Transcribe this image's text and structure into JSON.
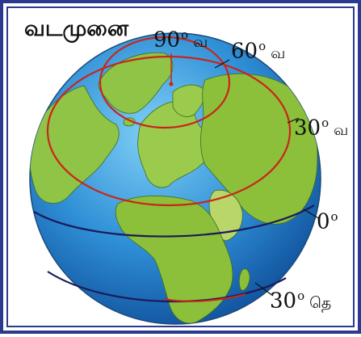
{
  "title": "வடமுனை",
  "colors": {
    "border": "#2a3b8f",
    "ocean": "#2f8fd6",
    "land": "#8cbf3a",
    "latitude_line": "#c8261b",
    "equator_line": "#1b1b5a"
  },
  "labels": [
    {
      "value": "90",
      "degree": "o",
      "direction": "வ"
    },
    {
      "value": "60",
      "degree": "o",
      "direction": "வ"
    },
    {
      "value": "30",
      "degree": "o",
      "direction": "வ"
    },
    {
      "value": "0",
      "degree": "o",
      "direction": ""
    },
    {
      "value": "30",
      "degree": "o",
      "direction": "தெ"
    }
  ]
}
